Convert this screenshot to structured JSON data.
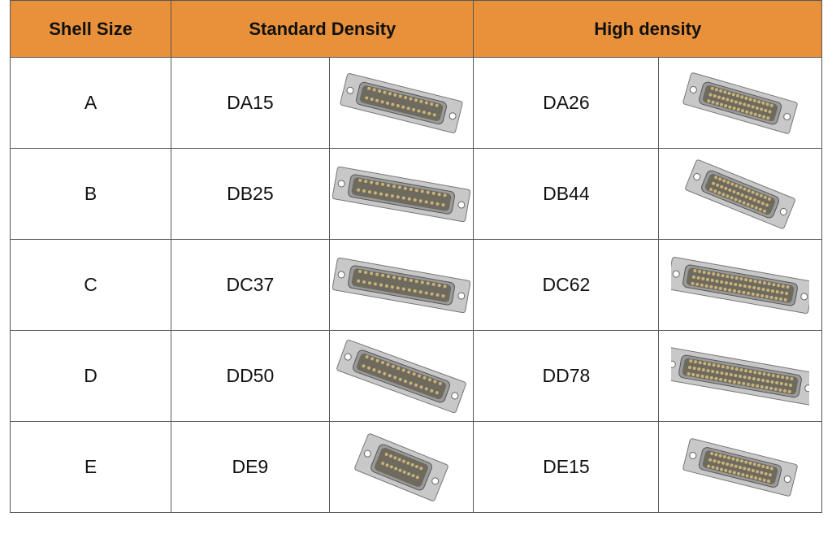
{
  "headers": {
    "shell_size": "Shell Size",
    "standard": "Standard Density",
    "high": "High density"
  },
  "rows": [
    {
      "shell": "A",
      "standard": "DA15",
      "high": "DA26"
    },
    {
      "shell": "B",
      "standard": "DB25",
      "high": "DB44"
    },
    {
      "shell": "C",
      "standard": "DC37",
      "high": "DC62"
    },
    {
      "shell": "D",
      "standard": "DD50",
      "high": "DD78"
    },
    {
      "shell": "E",
      "standard": "DE9",
      "high": "DE15"
    }
  ],
  "colors": {
    "header_bg": "#E8913A",
    "border": "#555555",
    "pins": "#C9B27A",
    "shell_metal": "#B8B8B8"
  },
  "image_alt": {
    "connector": "d-sub-connector-photo"
  }
}
